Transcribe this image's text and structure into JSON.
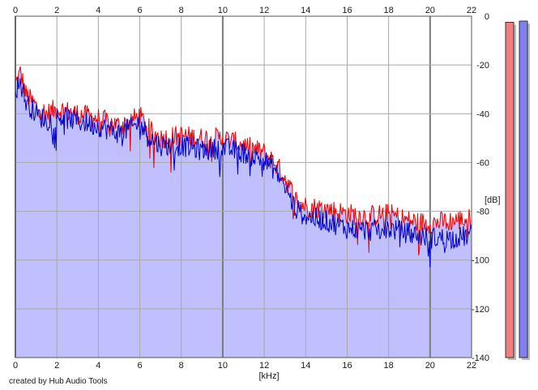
{
  "chart_data": {
    "type": "line",
    "xlabel": "[kHz]",
    "ylabel": "[dB]",
    "x_ticks": [
      "0",
      "2",
      "4",
      "6",
      "8",
      "10",
      "12",
      "14",
      "16",
      "18",
      "20",
      "22"
    ],
    "y_ticks": [
      "0",
      "-20",
      "-40",
      "-60",
      "-80",
      "-100",
      "-120",
      "-140"
    ],
    "xlim": [
      0,
      22
    ],
    "ylim": [
      -140,
      0
    ],
    "grid": true,
    "colors": {
      "fill": "#c0c0ff",
      "grid": "#a8a8a8",
      "grid_major": "#7a7a7a",
      "red": "#ee0000",
      "blue": "#0000cc",
      "meter_left": "#f08080",
      "meter_right": "#8080f0"
    },
    "series": [
      {
        "color": "red",
        "x": [
          0,
          0.25,
          0.5,
          1,
          1.5,
          2,
          3,
          4,
          5,
          6,
          6.5,
          7,
          8,
          9,
          10,
          11,
          12,
          12.5,
          13,
          13.5,
          14,
          15,
          16,
          17,
          18,
          19,
          20,
          21,
          22
        ],
        "y": [
          -28,
          -23,
          -32,
          -37,
          -40,
          -38,
          -40,
          -42,
          -45,
          -41,
          -47,
          -50,
          -49,
          -50,
          -50,
          -53,
          -56,
          -60,
          -66,
          -75,
          -78,
          -79,
          -81,
          -82,
          -81,
          -84,
          -85,
          -84,
          -83
        ]
      },
      {
        "color": "blue",
        "x": [
          0,
          0.25,
          0.5,
          1,
          1.5,
          2,
          3,
          4,
          5,
          6,
          6.5,
          7,
          8,
          9,
          10,
          11,
          12,
          12.5,
          13,
          13.5,
          14,
          15,
          16,
          17,
          18,
          19,
          20,
          21,
          22
        ],
        "y": [
          -30,
          -27,
          -35,
          -40,
          -43,
          -41,
          -43,
          -45,
          -48,
          -44,
          -50,
          -53,
          -53,
          -55,
          -54,
          -56,
          -59,
          -63,
          -70,
          -79,
          -82,
          -84,
          -87,
          -88,
          -87,
          -89,
          -91,
          -91,
          -90
        ]
      }
    ],
    "meters": [
      {
        "channel": "left",
        "value": -2.5
      },
      {
        "channel": "right",
        "value": -2.0
      }
    ]
  },
  "credit": "created by Hub Audio Tools"
}
